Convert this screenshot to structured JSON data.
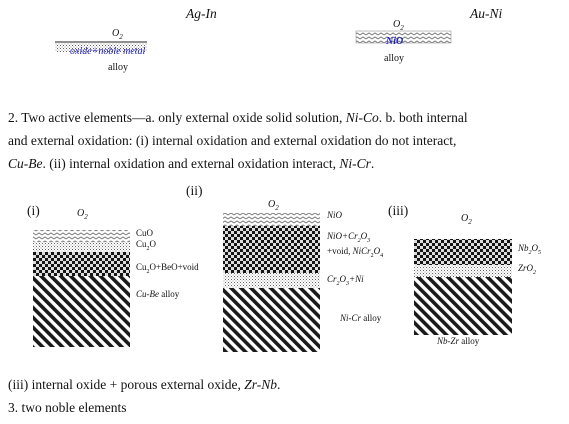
{
  "top": {
    "agin_title": "Ag-In",
    "auni_title": "Au-Ni",
    "agin_o2": "O",
    "agin_o2_sub": "2",
    "agin_layer": "oxide+noble metal",
    "agin_alloy": "alloy",
    "auni_o2": "O",
    "auni_o2_sub": "2",
    "auni_layer": "NiO",
    "auni_alloy": "alloy"
  },
  "paragraph2": {
    "line1_a": "2. Two active elements—a. only external oxide solid solution, ",
    "line1_ital": "Ni-Co",
    "line1_b": ". b. both internal",
    "line2": "and external oxidation: (i) internal oxidation and external oxidation do not interact,",
    "line3_ital1": "Cu-Be",
    "line3_a": ". (ii) internal oxidation and external oxidation interact, ",
    "line3_ital2": "Ni-Cr",
    "line3_b": "."
  },
  "diagram_i": {
    "tag": "(i)",
    "o2": "O",
    "o2_sub": "2",
    "cuo": "CuO",
    "cu2o_a": "Cu",
    "cu2o_sub": "2",
    "cu2o_b": "O",
    "mix_a": "Cu",
    "mix_sub": "2",
    "mix_b": "O+BeO+void",
    "alloy_ital": "Cu-Be",
    "alloy_b": " alloy"
  },
  "diagram_ii": {
    "tag": "(ii)",
    "o2": "O",
    "o2_sub": "2",
    "nio": "NiO",
    "l2_a": "NiO+Cr",
    "l2_sub1": "2",
    "l2_b": "O",
    "l2_sub2": "3",
    "l3_a": "+void, ",
    "l3_ital_a": "NiCr",
    "l3_sub1": "2",
    "l3_ital_b": "O",
    "l3_sub2": "4",
    "l4_a": "Cr",
    "l4_sub1": "2",
    "l4_b": "O",
    "l4_sub2": "3",
    "l4_c": "+Ni",
    "alloy_ital": "Ni-Cr",
    "alloy_b": " alloy"
  },
  "diagram_iii": {
    "tag": "(iii)",
    "o2": "O",
    "o2_sub": "2",
    "nb_a": "Nb",
    "nb_sub1": "2",
    "nb_b": "O",
    "nb_sub2": "5",
    "zr_a": "ZrO",
    "zr_sub": "2",
    "alloy_ital": "Nb-Zr",
    "alloy_b": " alloy"
  },
  "footer": {
    "line_a": "(iii) internal oxide + porous external oxide, ",
    "line_ital": "Zr-Nb",
    "line_b": ".",
    "line2": "3. two noble elements"
  }
}
